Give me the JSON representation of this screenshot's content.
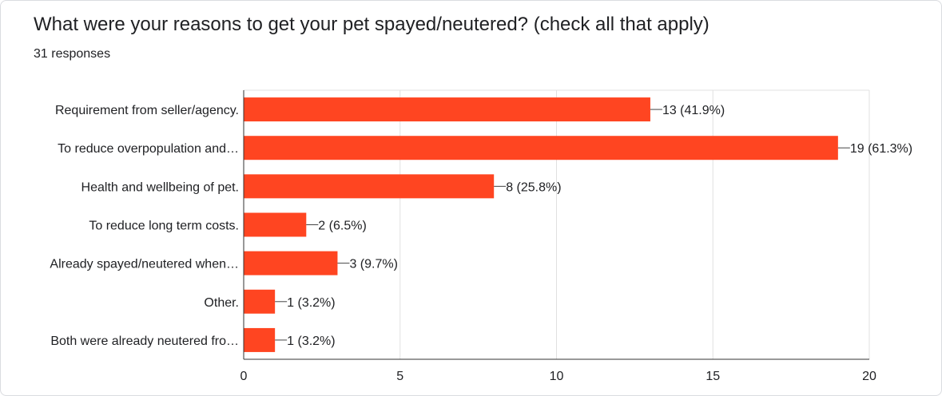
{
  "question": {
    "title": "What were your reasons to get your pet spayed/neutered? (check all that apply)",
    "responses": "31 responses"
  },
  "colors": {
    "bar": "#ff4521",
    "grid": "#e0e0e0",
    "axis": "#333333",
    "text": "#202124"
  },
  "chart_data": {
    "type": "bar",
    "orientation": "horizontal",
    "categories": [
      "Requirement from seller/agency.",
      "To reduce overpopulation and…",
      "Health and wellbeing of pet.",
      "To reduce long term costs.",
      "Already spayed/neutered when…",
      "Other.",
      "Both were already neutered fro…"
    ],
    "values": [
      13,
      19,
      8,
      2,
      3,
      1,
      1
    ],
    "data_labels": [
      "13 (41.9%)",
      "19 (61.3%)",
      "8 (25.8%)",
      "2 (6.5%)",
      "3 (9.7%)",
      "1 (3.2%)",
      "1 (3.2%)"
    ],
    "xlim": [
      0,
      20
    ],
    "x_ticks": [
      "0",
      "5",
      "10",
      "15",
      "20"
    ],
    "grid": true
  }
}
